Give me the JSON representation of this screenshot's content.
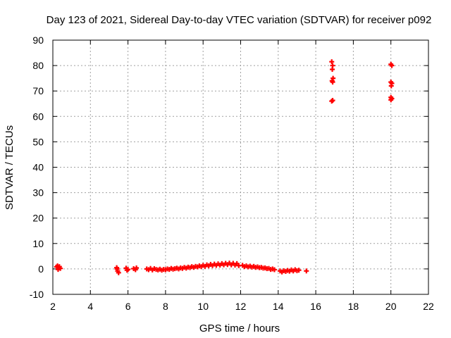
{
  "chart_data": {
    "type": "scatter",
    "title": "Day 123 of 2021, Sidereal Day-to-day VTEC variation (SDTVAR) for receiver p092",
    "xlabel": "GPS time / hours",
    "ylabel": "SDTVAR / TECUs",
    "xlim": [
      2,
      22
    ],
    "ylim": [
      -10,
      90
    ],
    "xticks": [
      "2",
      "4",
      "6",
      "8",
      "10",
      "12",
      "14",
      "16",
      "18",
      "20",
      "22"
    ],
    "yticks": [
      "-10",
      "0",
      "10",
      "20",
      "30",
      "40",
      "50",
      "60",
      "70",
      "80",
      "90"
    ],
    "grid": true,
    "marker_color": "#ff0000",
    "series": [
      {
        "name": "SDTVAR",
        "points": [
          [
            2.2,
            0.8
          ],
          [
            2.25,
            1.2
          ],
          [
            2.3,
            0.5
          ],
          [
            2.35,
            0.9
          ],
          [
            2.4,
            0.2
          ],
          [
            2.28,
            -0.2
          ],
          [
            5.4,
            0.5
          ],
          [
            5.45,
            -0.8
          ],
          [
            5.5,
            -1.5
          ],
          [
            5.42,
            0.0
          ],
          [
            5.9,
            0.3
          ],
          [
            5.95,
            -0.5
          ],
          [
            6.0,
            -0.2
          ],
          [
            6.3,
            0.1
          ],
          [
            6.4,
            -0.3
          ],
          [
            6.45,
            0.4
          ],
          [
            7.0,
            0.0
          ],
          [
            7.1,
            -0.3
          ],
          [
            7.2,
            0.2
          ],
          [
            7.3,
            -0.4
          ],
          [
            7.4,
            0.1
          ],
          [
            7.5,
            -0.2
          ],
          [
            7.6,
            -0.4
          ],
          [
            7.7,
            -0.1
          ],
          [
            7.8,
            -0.5
          ],
          [
            7.9,
            -0.2
          ],
          [
            8.0,
            -0.3
          ],
          [
            8.1,
            0.0
          ],
          [
            8.2,
            -0.2
          ],
          [
            8.3,
            0.2
          ],
          [
            8.4,
            -0.1
          ],
          [
            8.5,
            0.1
          ],
          [
            8.6,
            0.3
          ],
          [
            8.7,
            0.0
          ],
          [
            8.8,
            0.4
          ],
          [
            8.9,
            0.2
          ],
          [
            9.0,
            0.6
          ],
          [
            9.1,
            0.3
          ],
          [
            9.2,
            0.7
          ],
          [
            9.3,
            0.5
          ],
          [
            9.4,
            0.9
          ],
          [
            9.5,
            0.6
          ],
          [
            9.6,
            1.0
          ],
          [
            9.7,
            0.8
          ],
          [
            9.8,
            1.2
          ],
          [
            9.9,
            0.9
          ],
          [
            10.0,
            1.4
          ],
          [
            10.1,
            1.0
          ],
          [
            10.2,
            1.6
          ],
          [
            10.3,
            1.2
          ],
          [
            10.4,
            1.8
          ],
          [
            10.5,
            1.3
          ],
          [
            10.6,
            1.9
          ],
          [
            10.7,
            1.4
          ],
          [
            10.8,
            2.0
          ],
          [
            10.9,
            1.5
          ],
          [
            11.0,
            2.1
          ],
          [
            11.1,
            1.6
          ],
          [
            11.2,
            2.2
          ],
          [
            11.3,
            1.7
          ],
          [
            11.4,
            2.3
          ],
          [
            11.5,
            1.6
          ],
          [
            11.6,
            2.2
          ],
          [
            11.7,
            1.5
          ],
          [
            11.8,
            2.1
          ],
          [
            11.9,
            1.3
          ],
          [
            12.1,
            1.4
          ],
          [
            12.2,
            0.9
          ],
          [
            12.3,
            1.2
          ],
          [
            12.4,
            0.8
          ],
          [
            12.5,
            1.1
          ],
          [
            12.6,
            0.7
          ],
          [
            12.7,
            1.0
          ],
          [
            12.8,
            0.6
          ],
          [
            12.9,
            0.8
          ],
          [
            13.0,
            0.5
          ],
          [
            13.1,
            0.6
          ],
          [
            13.2,
            0.3
          ],
          [
            13.3,
            0.4
          ],
          [
            13.4,
            0.1
          ],
          [
            13.5,
            0.2
          ],
          [
            13.6,
            -0.2
          ],
          [
            13.7,
            0.0
          ],
          [
            13.8,
            -0.3
          ],
          [
            14.1,
            -0.8
          ],
          [
            14.2,
            -1.2
          ],
          [
            14.3,
            -0.7
          ],
          [
            14.4,
            -1.0
          ],
          [
            14.5,
            -0.6
          ],
          [
            14.6,
            -0.9
          ],
          [
            14.7,
            -0.4
          ],
          [
            14.8,
            -0.8
          ],
          [
            14.9,
            -0.3
          ],
          [
            15.0,
            -0.7
          ],
          [
            15.1,
            -0.5
          ],
          [
            15.5,
            -0.8
          ],
          [
            16.85,
            81.5
          ],
          [
            16.9,
            80.0
          ],
          [
            16.88,
            78.5
          ],
          [
            16.92,
            75.0
          ],
          [
            16.87,
            74.0
          ],
          [
            16.9,
            73.5
          ],
          [
            16.85,
            66.0
          ],
          [
            16.9,
            66.3
          ],
          [
            20.0,
            80.5
          ],
          [
            20.05,
            80.0
          ],
          [
            20.0,
            73.5
          ],
          [
            20.05,
            73.0
          ],
          [
            20.02,
            72.0
          ],
          [
            20.0,
            67.5
          ],
          [
            20.05,
            67.0
          ],
          [
            20.0,
            66.5
          ]
        ]
      }
    ]
  }
}
